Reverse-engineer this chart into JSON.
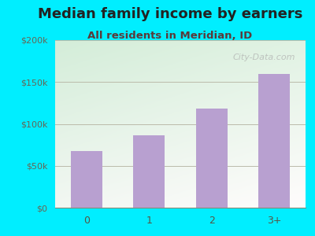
{
  "title": "Median family income by earners",
  "subtitle": "All residents in Meridian, ID",
  "categories": [
    "0",
    "1",
    "2",
    "3+"
  ],
  "values": [
    68000,
    86000,
    118000,
    160000
  ],
  "bar_color": "#b8a0d0",
  "title_color": "#222222",
  "subtitle_color": "#5a3a3a",
  "background_outer": "#00eeff",
  "ylim": [
    0,
    200000
  ],
  "yticks": [
    0,
    50000,
    100000,
    150000,
    200000
  ],
  "ytick_labels": [
    "$0",
    "$50k",
    "$100k",
    "$150k",
    "$200k"
  ],
  "watermark": "City-Data.com",
  "title_fontsize": 13,
  "subtitle_fontsize": 9.5
}
